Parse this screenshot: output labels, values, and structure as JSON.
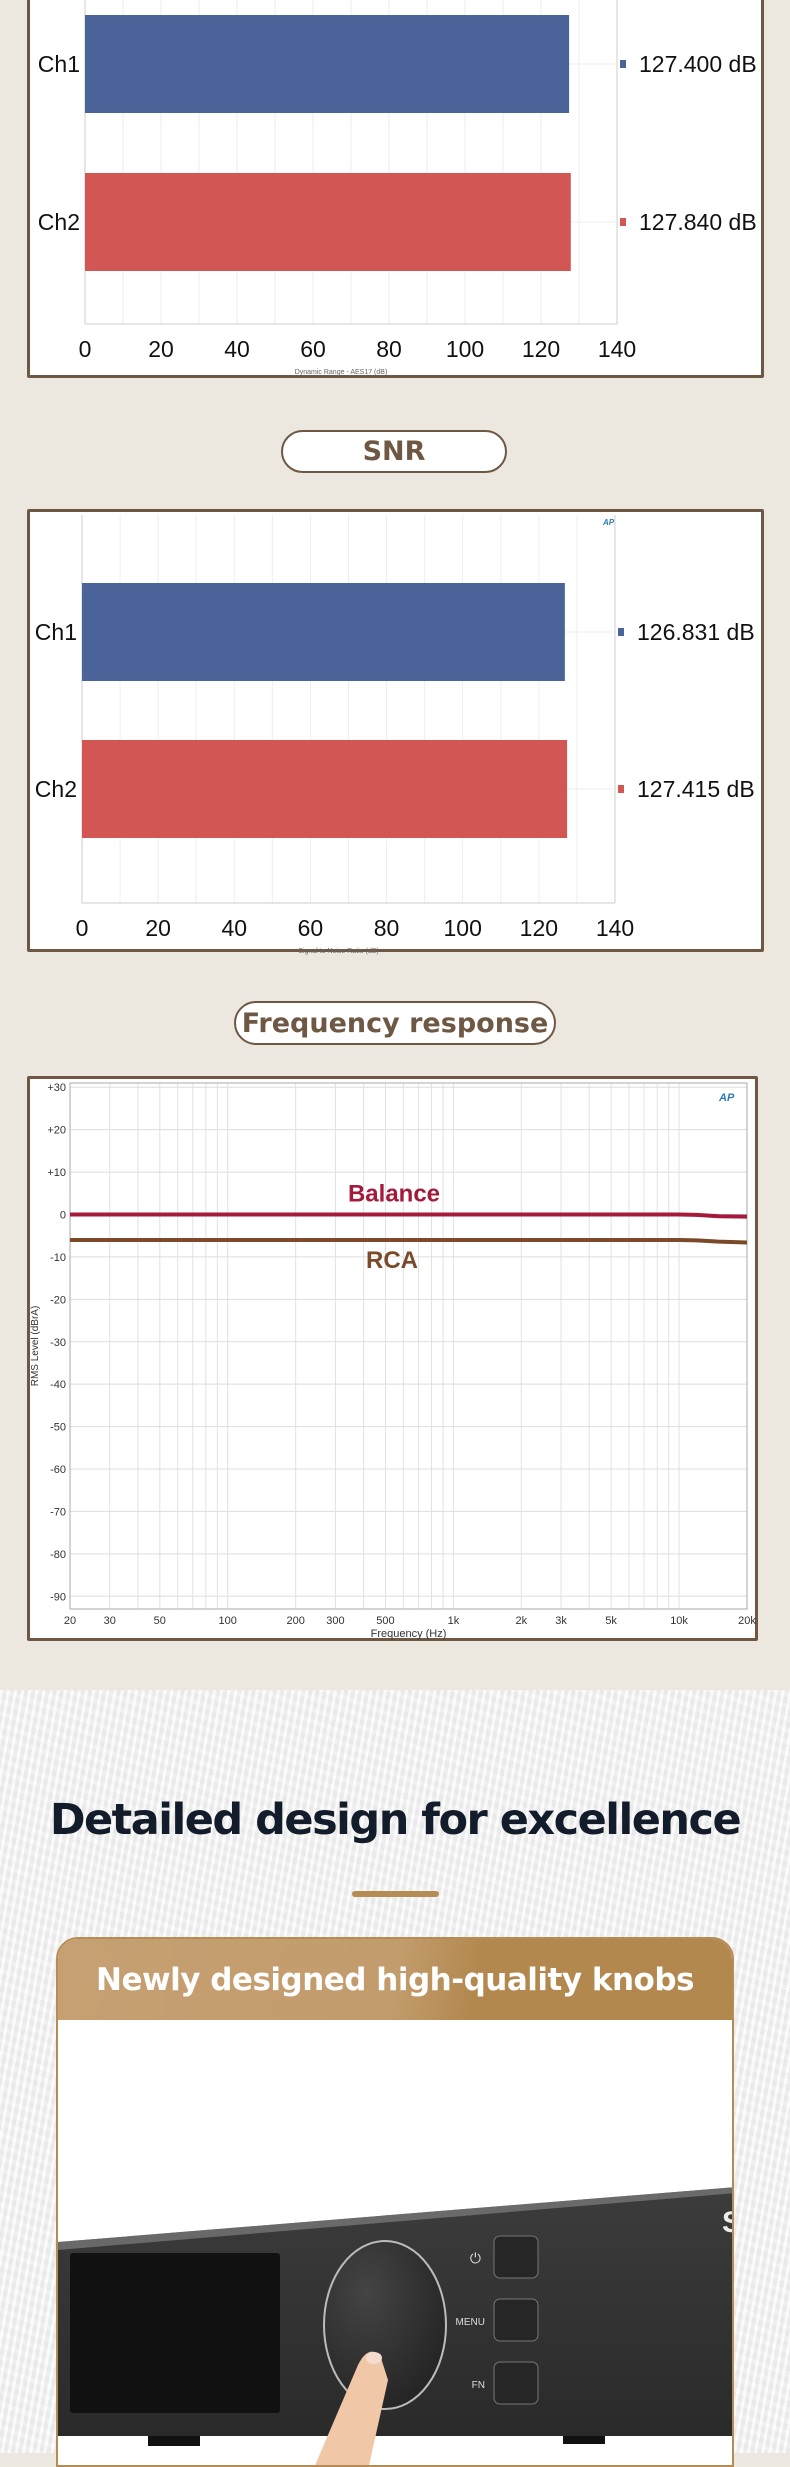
{
  "colors": {
    "ch1": "#4a6399",
    "ch2": "#d25754",
    "balance": "#a5193a",
    "rca": "#7a4a2a",
    "frame": "#6e5843",
    "accent": "#b68c55"
  },
  "chart_data": [
    {
      "type": "bar",
      "orientation": "horizontal",
      "categories": [
        "Ch1",
        "Ch2"
      ],
      "values": [
        127.4,
        127.84
      ],
      "value_labels": [
        "127.400 dB",
        "127.840 dB"
      ],
      "xlabel": "Dynamic Range - AES17 (dB)",
      "xlim": [
        0,
        140
      ],
      "xticks": [
        "0",
        "20",
        "40",
        "60",
        "80",
        "100",
        "120",
        "140"
      ],
      "grid": true
    },
    {
      "title": "SNR",
      "type": "bar",
      "orientation": "horizontal",
      "categories": [
        "Ch1",
        "Ch2"
      ],
      "values": [
        126.831,
        127.415
      ],
      "value_labels": [
        "126.831 dB",
        "127.415 dB"
      ],
      "xlabel": "Signal to Noise Ratio (dB)",
      "xlim": [
        0,
        140
      ],
      "xticks": [
        "0",
        "20",
        "40",
        "60",
        "80",
        "100",
        "120",
        "140"
      ],
      "grid": true
    },
    {
      "title": "Frequency response",
      "type": "line",
      "xscale": "log",
      "xlim": [
        20,
        20000
      ],
      "ylim": [
        -93,
        31
      ],
      "xlabel": "Frequency (Hz)",
      "ylabel": "RMS Level (dBrA)",
      "xticks": [
        20,
        30,
        50,
        100,
        200,
        300,
        500,
        1000,
        2000,
        3000,
        5000,
        10000,
        20000
      ],
      "xtick_labels": [
        "20",
        "30",
        "50",
        "100",
        "200",
        "300",
        "500",
        "1k",
        "2k",
        "3k",
        "5k",
        "10k",
        "20k"
      ],
      "yticks": [
        30,
        20,
        10,
        0,
        -10,
        -20,
        -30,
        -40,
        -50,
        -60,
        -70,
        -80,
        -90
      ],
      "ytick_labels": [
        "+30",
        "+20",
        "+10",
        "0",
        "-10",
        "-20",
        "-30",
        "-40",
        "-50",
        "-60",
        "-70",
        "-80",
        "-90"
      ],
      "grid": true,
      "series": [
        {
          "name": "Balance",
          "x": [
            20,
            1000,
            10000,
            12000,
            15000,
            20000
          ],
          "y": [
            0,
            0,
            0,
            -0.1,
            -0.4,
            -0.5
          ]
        },
        {
          "name": "RCA",
          "x": [
            20,
            1000,
            10000,
            12000,
            15000,
            20000
          ],
          "y": [
            -6,
            -6,
            -6,
            -6.1,
            -6.4,
            -6.6
          ]
        }
      ]
    }
  ],
  "logo": "AP",
  "section": {
    "heading": "Detailed design for excellence",
    "card_title": "Newly designed high-quality knobs",
    "device": {
      "power_label": "⏻",
      "menu_label": "MENU",
      "fn_label": "FN",
      "brand_fragment": "S"
    }
  }
}
